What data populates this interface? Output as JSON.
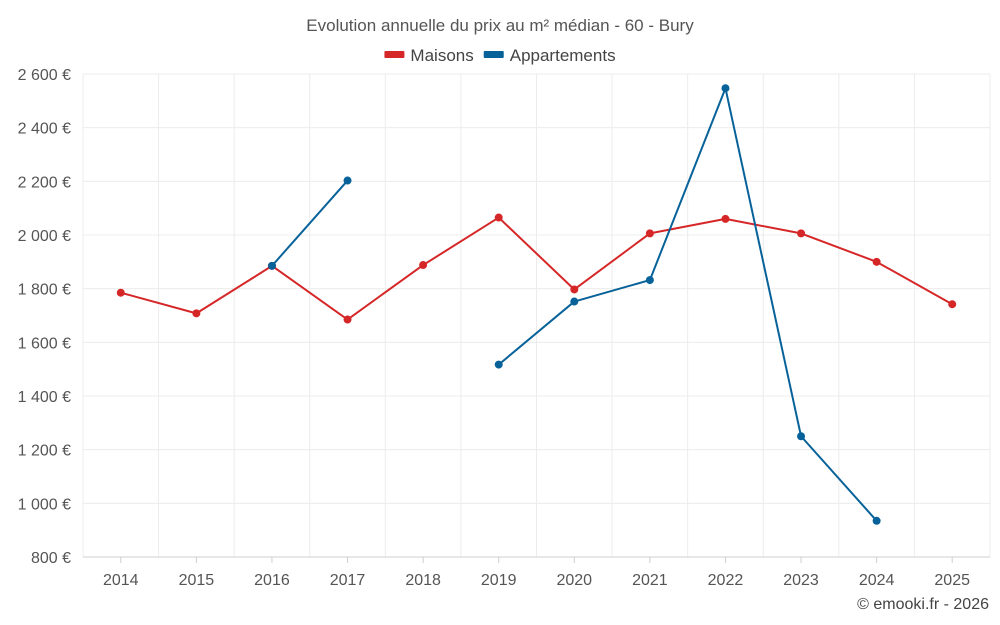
{
  "chart_data": {
    "type": "line",
    "title": "Evolution annuelle du prix au m² médian - 60 - Bury",
    "categories": [
      "2014",
      "2015",
      "2016",
      "2017",
      "2018",
      "2019",
      "2020",
      "2021",
      "2022",
      "2023",
      "2024",
      "2025"
    ],
    "series": [
      {
        "name": "Maisons",
        "color": "#d62728",
        "values": [
          1785,
          1708,
          1885,
          1685,
          1888,
          2065,
          1797,
          2006,
          2060,
          2006,
          1900,
          1742
        ]
      },
      {
        "name": "Appartements",
        "color": "#08629a",
        "values": [
          null,
          null,
          1885,
          2203,
          null,
          1517,
          1752,
          1832,
          2547,
          1250,
          935,
          null
        ]
      }
    ],
    "ylim": [
      800,
      2600
    ],
    "yticks": [
      800,
      1000,
      1200,
      1400,
      1600,
      1800,
      2000,
      2200,
      2400,
      2600
    ],
    "ytick_labels": [
      "800 €",
      "1 000 €",
      "1 200 €",
      "1 400 €",
      "1 600 €",
      "1 800 €",
      "2 000 €",
      "2 200 €",
      "2 400 €",
      "2 600 €"
    ],
    "grid": true,
    "legend_position": "top-center"
  },
  "credit": "© emooki.fr - 2026"
}
